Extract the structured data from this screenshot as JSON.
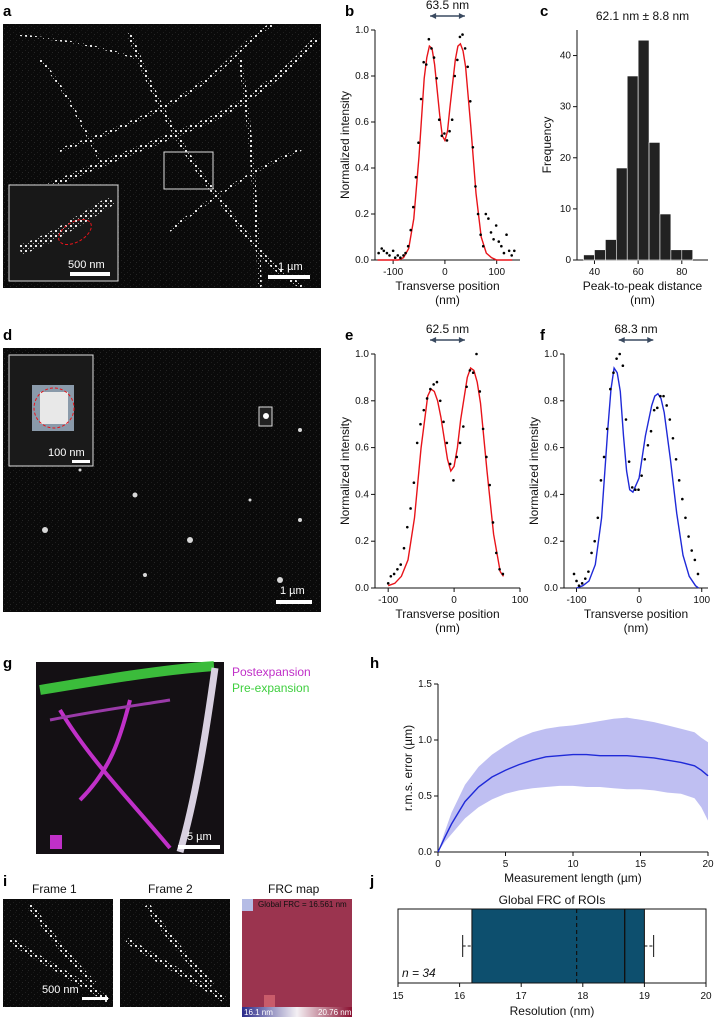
{
  "panels": {
    "a": "a",
    "b": "b",
    "c": "c",
    "d": "d",
    "e": "e",
    "f": "f",
    "g": "g",
    "h": "h",
    "i": "i",
    "j": "j"
  },
  "images": {
    "a_scale": "1 µm",
    "a_inset_scale": "500 nm",
    "d_scale": "1 µm",
    "d_inset_scale": "100 nm",
    "g_scale": "5 µm",
    "g_legend": [
      "Postexpansion",
      "Pre-expansion"
    ],
    "i_frame1": "Frame 1",
    "i_frame2": "Frame 2",
    "i_frc": "FRC map",
    "i_scale": "500 nm",
    "i_global_frc": "Global FRC = 16.561 nm",
    "i_cbar_min": "16.1 nm",
    "i_cbar_max": "20.76 nm"
  },
  "colors": {
    "red": "#e8141a",
    "blue": "#1f2ad8",
    "bar": "#222222",
    "box": "#0d4f6e",
    "band": "#b4b4f0",
    "magenta": "#c030c8",
    "green": "#3fcf3f"
  },
  "chart_data": [
    {
      "id": "b",
      "type": "line",
      "annotation": "63.5 nm",
      "xlabel": "Transverse position\n(nm)",
      "ylabel": "Normalized intensity",
      "xlim": [
        -135,
        145
      ],
      "ylim": [
        0,
        1.0
      ],
      "xticks": [
        -100,
        0,
        100
      ],
      "yticks": [
        0,
        0.2,
        0.4,
        0.6,
        0.8,
        1.0
      ],
      "series": [
        {
          "kind": "fit",
          "color": "#e8141a",
          "x": [
            -130,
            -120,
            -110,
            -100,
            -90,
            -80,
            -70,
            -60,
            -50,
            -40,
            -35,
            -30,
            -25,
            -20,
            -10,
            -5,
            0,
            5,
            10,
            20,
            25,
            30,
            35,
            40,
            50,
            60,
            70,
            80,
            90,
            100,
            110,
            120,
            130
          ],
          "y": [
            0,
            0,
            0,
            0,
            0,
            0.01,
            0.05,
            0.18,
            0.45,
            0.79,
            0.88,
            0.93,
            0.92,
            0.85,
            0.63,
            0.54,
            0.52,
            0.56,
            0.67,
            0.87,
            0.93,
            0.94,
            0.91,
            0.84,
            0.58,
            0.29,
            0.1,
            0.03,
            0.01,
            0,
            0,
            0,
            0
          ]
        },
        {
          "kind": "points",
          "color": "#000",
          "x": [
            -128,
            -122,
            -118,
            -112,
            -107,
            -100,
            -96,
            -91,
            -86,
            -80,
            -76,
            -71,
            -66,
            -61,
            -56,
            -51,
            -46,
            -41,
            -36,
            -31,
            -26,
            -21,
            -16,
            -11,
            -6,
            -1,
            4,
            9,
            14,
            19,
            24,
            29,
            34,
            39,
            44,
            49,
            54,
            59,
            64,
            69,
            74,
            79,
            84,
            89,
            94,
            99,
            104,
            109,
            114,
            119,
            124,
            129,
            134
          ],
          "y": [
            0.03,
            0.05,
            0.04,
            0.03,
            0.02,
            0.04,
            0.01,
            0.02,
            0.01,
            0.02,
            0.03,
            0.06,
            0.13,
            0.23,
            0.36,
            0.51,
            0.7,
            0.86,
            0.85,
            0.96,
            0.92,
            0.88,
            0.79,
            0.61,
            0.54,
            0.55,
            0.52,
            0.56,
            0.61,
            0.8,
            0.87,
            0.97,
            0.98,
            0.92,
            0.84,
            0.69,
            0.49,
            0.32,
            0.2,
            0.11,
            0.06,
            0.2,
            0.18,
            0.12,
            0.09,
            0.15,
            0.08,
            0.06,
            0.03,
            0.11,
            0.04,
            0.02,
            0.04
          ]
        }
      ]
    },
    {
      "id": "c",
      "type": "bar",
      "title": "62.1 nm ± 8.8 nm",
      "xlabel": "Peak-to-peak distance\n(nm)",
      "ylabel": "Frequency",
      "xlim": [
        32,
        92
      ],
      "ylim": [
        0,
        45
      ],
      "xticks": [
        40,
        60,
        80
      ],
      "yticks": [
        0,
        10,
        20,
        30,
        40
      ],
      "bin_edges": [
        35,
        40,
        45,
        50,
        55,
        60,
        65,
        70,
        75,
        80,
        85
      ],
      "values": [
        1,
        2,
        4,
        18,
        36,
        43,
        23,
        9,
        2,
        2
      ]
    },
    {
      "id": "e",
      "type": "line",
      "annotation": "62.5 nm",
      "xlabel": "Transverse position\n(nm)",
      "ylabel": "Normalized intensity",
      "xlim": [
        -120,
        100
      ],
      "ylim": [
        0,
        1.0
      ],
      "xticks": [
        -100,
        0,
        100
      ],
      "yticks": [
        0,
        0.2,
        0.4,
        0.6,
        0.8,
        1.0
      ],
      "series": [
        {
          "kind": "fit",
          "color": "#e8141a",
          "x": [
            -100,
            -90,
            -80,
            -70,
            -60,
            -50,
            -40,
            -35,
            -30,
            -25,
            -20,
            -10,
            -5,
            0,
            5,
            10,
            20,
            25,
            30,
            35,
            40,
            50,
            60,
            70,
            75
          ],
          "y": [
            0.01,
            0.02,
            0.05,
            0.12,
            0.3,
            0.6,
            0.82,
            0.85,
            0.84,
            0.8,
            0.73,
            0.55,
            0.5,
            0.52,
            0.6,
            0.72,
            0.9,
            0.94,
            0.93,
            0.88,
            0.79,
            0.5,
            0.23,
            0.07,
            0.05
          ]
        },
        {
          "kind": "points",
          "color": "#000",
          "x": [
            -100,
            -96,
            -91,
            -86,
            -81,
            -76,
            -71,
            -66,
            -61,
            -56,
            -51,
            -46,
            -41,
            -36,
            -31,
            -26,
            -21,
            -16,
            -11,
            -6,
            -1,
            4,
            9,
            14,
            19,
            24,
            29,
            34,
            39,
            44,
            49,
            54,
            59,
            64,
            69,
            74
          ],
          "y": [
            0.02,
            0.05,
            0.06,
            0.08,
            0.1,
            0.17,
            0.26,
            0.34,
            0.45,
            0.62,
            0.7,
            0.76,
            0.81,
            0.85,
            0.87,
            0.88,
            0.8,
            0.71,
            0.62,
            0.53,
            0.46,
            0.56,
            0.62,
            0.69,
            0.86,
            0.93,
            0.92,
            1.0,
            0.84,
            0.68,
            0.56,
            0.44,
            0.28,
            0.15,
            0.08,
            0.06
          ]
        }
      ]
    },
    {
      "id": "f",
      "type": "line",
      "annotation": "68.3 nm",
      "xlabel": "Transverse position\n(nm)",
      "ylabel": "Normalized intensity",
      "xlim": [
        -120,
        110
      ],
      "ylim": [
        0,
        1.0
      ],
      "xticks": [
        -100,
        0,
        100
      ],
      "yticks": [
        0,
        0.2,
        0.4,
        0.6,
        0.8,
        1.0
      ],
      "series": [
        {
          "kind": "fit",
          "color": "#1f2ad8",
          "x": [
            -100,
            -90,
            -80,
            -70,
            -60,
            -50,
            -45,
            -40,
            -35,
            -30,
            -25,
            -20,
            -15,
            -10,
            0,
            10,
            20,
            25,
            30,
            35,
            40,
            50,
            60,
            70,
            80,
            90,
            95
          ],
          "y": [
            0,
            0.01,
            0.03,
            0.1,
            0.3,
            0.68,
            0.85,
            0.94,
            0.92,
            0.84,
            0.65,
            0.5,
            0.42,
            0.41,
            0.47,
            0.65,
            0.78,
            0.82,
            0.83,
            0.81,
            0.75,
            0.55,
            0.32,
            0.14,
            0.05,
            0.01,
            0
          ]
        },
        {
          "kind": "points",
          "color": "#000",
          "x": [
            -104,
            -100,
            -96,
            -91,
            -86,
            -81,
            -76,
            -71,
            -66,
            -61,
            -56,
            -51,
            -46,
            -41,
            -36,
            -31,
            -26,
            -21,
            -16,
            -11,
            -6,
            -1,
            4,
            9,
            14,
            19,
            24,
            29,
            34,
            39,
            44,
            49,
            54,
            59,
            64,
            69,
            74,
            79,
            84,
            89,
            94
          ],
          "y": [
            0.06,
            0.03,
            0.01,
            0.02,
            0.04,
            0.07,
            0.15,
            0.2,
            0.3,
            0.46,
            0.56,
            0.68,
            0.85,
            0.92,
            0.98,
            1.0,
            0.95,
            0.72,
            0.54,
            0.43,
            0.42,
            0.42,
            0.48,
            0.55,
            0.61,
            0.67,
            0.76,
            0.77,
            0.82,
            0.82,
            0.78,
            0.72,
            0.64,
            0.55,
            0.46,
            0.38,
            0.3,
            0.22,
            0.16,
            0.12,
            0.06
          ]
        }
      ]
    },
    {
      "id": "h",
      "type": "area",
      "xlabel": "Measurement length (µm)",
      "ylabel": "r.m.s. error (µm)",
      "xlim": [
        0,
        20
      ],
      "ylim": [
        0,
        1.5
      ],
      "xticks": [
        0,
        5,
        10,
        15,
        20
      ],
      "yticks": [
        0,
        0.5,
        1.0,
        1.5
      ],
      "x": [
        0,
        0.5,
        1,
        2,
        3,
        4,
        5,
        6,
        7,
        8,
        9,
        10,
        11,
        12,
        13,
        14,
        15,
        16,
        17,
        18,
        19,
        19.5,
        20
      ],
      "mean": [
        0,
        0.13,
        0.25,
        0.45,
        0.58,
        0.67,
        0.73,
        0.78,
        0.82,
        0.85,
        0.86,
        0.87,
        0.87,
        0.86,
        0.86,
        0.86,
        0.85,
        0.84,
        0.82,
        0.8,
        0.77,
        0.73,
        0.68
      ],
      "upper": [
        0,
        0.18,
        0.35,
        0.6,
        0.76,
        0.87,
        0.95,
        1.02,
        1.07,
        1.1,
        1.12,
        1.13,
        1.15,
        1.17,
        1.19,
        1.2,
        1.18,
        1.16,
        1.13,
        1.1,
        1.07,
        1.02,
        0.98
      ],
      "lower": [
        0,
        0.09,
        0.16,
        0.3,
        0.4,
        0.47,
        0.52,
        0.55,
        0.57,
        0.58,
        0.59,
        0.59,
        0.58,
        0.58,
        0.57,
        0.56,
        0.56,
        0.55,
        0.53,
        0.52,
        0.48,
        0.4,
        0.28
      ]
    },
    {
      "id": "j",
      "type": "box",
      "title": "Global FRC of ROIs",
      "annotation": "n = 34",
      "xlabel": "Resolution (nm)",
      "xlim": [
        15,
        20
      ],
      "xticks": [
        15,
        16,
        17,
        18,
        19,
        20
      ],
      "whisker_low": 16.05,
      "q1": 16.2,
      "mean": 17.9,
      "median": 18.68,
      "q3": 19.0,
      "whisker_high": 19.15
    }
  ]
}
